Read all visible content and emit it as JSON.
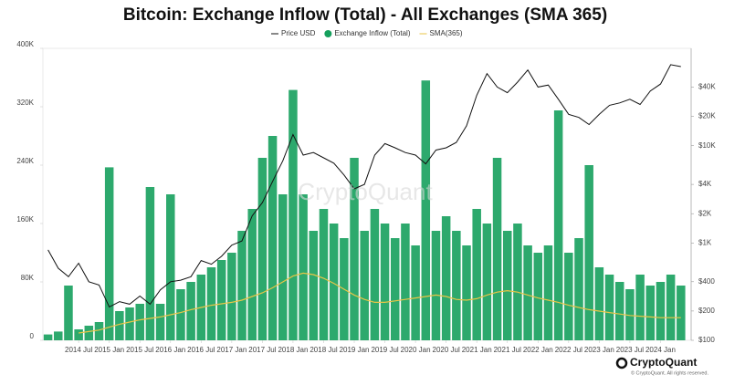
{
  "chart_data": {
    "type": "bar",
    "title": "Bitcoin: Exchange Inflow (Total) - All Exchanges (SMA 365)",
    "watermark": "CryptoQuant",
    "brand": "CryptoQuant",
    "copyright": "© CryptoQuant. All rights reserved.",
    "x": [
      "2014-01",
      "2014-03",
      "2014-05",
      "2014-07",
      "2014-09",
      "2014-11",
      "2015-01",
      "2015-03",
      "2015-05",
      "2015-07",
      "2015-09",
      "2015-11",
      "2016-01",
      "2016-03",
      "2016-05",
      "2016-07",
      "2016-09",
      "2016-11",
      "2017-01",
      "2017-03",
      "2017-05",
      "2017-07",
      "2017-09",
      "2017-11",
      "2018-01",
      "2018-03",
      "2018-05",
      "2018-07",
      "2018-09",
      "2018-11",
      "2019-01",
      "2019-03",
      "2019-05",
      "2019-07",
      "2019-09",
      "2019-11",
      "2020-01",
      "2020-03",
      "2020-05",
      "2020-07",
      "2020-09",
      "2020-11",
      "2021-01",
      "2021-03",
      "2021-05",
      "2021-07",
      "2021-09",
      "2021-11",
      "2022-01",
      "2022-03",
      "2022-05",
      "2022-07",
      "2022-09",
      "2022-11",
      "2023-01",
      "2023-03",
      "2023-05",
      "2023-07",
      "2023-09",
      "2023-11",
      "2024-01",
      "2024-03",
      "2024-05"
    ],
    "xlim": [
      "2013-12",
      "2024-07"
    ],
    "xticks": [
      {
        "value": "2014-07",
        "label": "2014 Jul"
      },
      {
        "value": "2015-01",
        "label": "2015 Jan"
      },
      {
        "value": "2015-07",
        "label": "2015 Jul"
      },
      {
        "value": "2016-01",
        "label": "2016 Jan"
      },
      {
        "value": "2016-07",
        "label": "2016 Jul"
      },
      {
        "value": "2017-01",
        "label": "2017 Jan"
      },
      {
        "value": "2017-07",
        "label": "2017 Jul"
      },
      {
        "value": "2018-01",
        "label": "2018 Jan"
      },
      {
        "value": "2018-07",
        "label": "2018 Jul"
      },
      {
        "value": "2019-01",
        "label": "2019 Jan"
      },
      {
        "value": "2019-07",
        "label": "2019 Jul"
      },
      {
        "value": "2020-01",
        "label": "2020 Jan"
      },
      {
        "value": "2020-07",
        "label": "2020 Jul"
      },
      {
        "value": "2021-01",
        "label": "2021 Jan"
      },
      {
        "value": "2021-07",
        "label": "2021 Jul"
      },
      {
        "value": "2022-01",
        "label": "2022 Jan"
      },
      {
        "value": "2022-07",
        "label": "2022 Jul"
      },
      {
        "value": "2023-01",
        "label": "2023 Jan"
      },
      {
        "value": "2023-07",
        "label": "2023 Jul"
      },
      {
        "value": "2024-01",
        "label": "2024 Jan"
      }
    ],
    "ylim": [
      0,
      400000
    ],
    "yticks": [
      0,
      {
        "value": 80000,
        "label": "80K"
      },
      {
        "value": 160000,
        "label": "160K"
      },
      {
        "value": 240000,
        "label": "240K"
      },
      {
        "value": 320000,
        "label": "320K"
      },
      {
        "value": 400000,
        "label": "400K"
      }
    ],
    "y2lim": [
      100,
      100000
    ],
    "y2scale": "log",
    "y2ticks": [
      {
        "value": 100,
        "label": "$100"
      },
      {
        "value": 200,
        "label": "$200"
      },
      {
        "value": 400,
        "label": "$400"
      },
      {
        "value": 1000,
        "label": "$1K"
      },
      {
        "value": 2000,
        "label": "$2K"
      },
      {
        "value": 4000,
        "label": "$4K"
      },
      {
        "value": 10000,
        "label": "$10K"
      },
      {
        "value": 20000,
        "label": "$20K"
      },
      {
        "value": 40000,
        "label": "$40K"
      }
    ],
    "series": [
      {
        "name": "Price USD",
        "type": "line",
        "axis": "y2",
        "color": "#111111",
        "values": [
          850,
          550,
          450,
          620,
          400,
          370,
          220,
          250,
          235,
          285,
          235,
          330,
          400,
          415,
          450,
          660,
          605,
          730,
          950,
          1050,
          1900,
          2600,
          4300,
          7000,
          13000,
          8000,
          8500,
          7500,
          6600,
          5000,
          3600,
          4000,
          8000,
          10500,
          9500,
          8500,
          8000,
          6500,
          9000,
          9500,
          10800,
          16000,
          33000,
          55000,
          40000,
          35000,
          45000,
          60000,
          40000,
          42000,
          30000,
          21000,
          19500,
          16500,
          21000,
          26000,
          27500,
          30000,
          26500,
          36500,
          43000,
          68000,
          65000
        ]
      },
      {
        "name": "Exchange Inflow (Total)",
        "type": "bar",
        "color": "#16a05d",
        "values": [
          8000,
          12000,
          75000,
          15000,
          20000,
          25000,
          237000,
          40000,
          45000,
          50000,
          210000,
          50000,
          200000,
          70000,
          80000,
          90000,
          100000,
          110000,
          120000,
          150000,
          180000,
          250000,
          280000,
          200000,
          343000,
          200000,
          150000,
          180000,
          160000,
          140000,
          250000,
          150000,
          180000,
          160000,
          140000,
          160000,
          130000,
          356000,
          150000,
          170000,
          150000,
          130000,
          180000,
          160000,
          250000,
          150000,
          160000,
          130000,
          120000,
          130000,
          315000,
          120000,
          140000,
          240000,
          100000,
          90000,
          80000,
          70000,
          90000,
          75000,
          80000,
          90000,
          75000
        ]
      },
      {
        "name": "SMA(365)",
        "type": "line",
        "color": "#e8c547",
        "values": [
          null,
          null,
          null,
          10000,
          12000,
          14000,
          18000,
          22000,
          25000,
          28000,
          30000,
          32000,
          35000,
          38000,
          42000,
          45000,
          48000,
          50000,
          52000,
          55000,
          60000,
          65000,
          72000,
          80000,
          88000,
          92000,
          90000,
          85000,
          78000,
          70000,
          62000,
          56000,
          52000,
          52000,
          54000,
          56000,
          58000,
          60000,
          62000,
          60000,
          56000,
          55000,
          57000,
          62000,
          66000,
          68000,
          66000,
          62000,
          58000,
          55000,
          52000,
          48000,
          45000,
          42000,
          40000,
          38000,
          36000,
          34000,
          33000,
          32000,
          31000,
          31000,
          31000
        ]
      }
    ]
  }
}
